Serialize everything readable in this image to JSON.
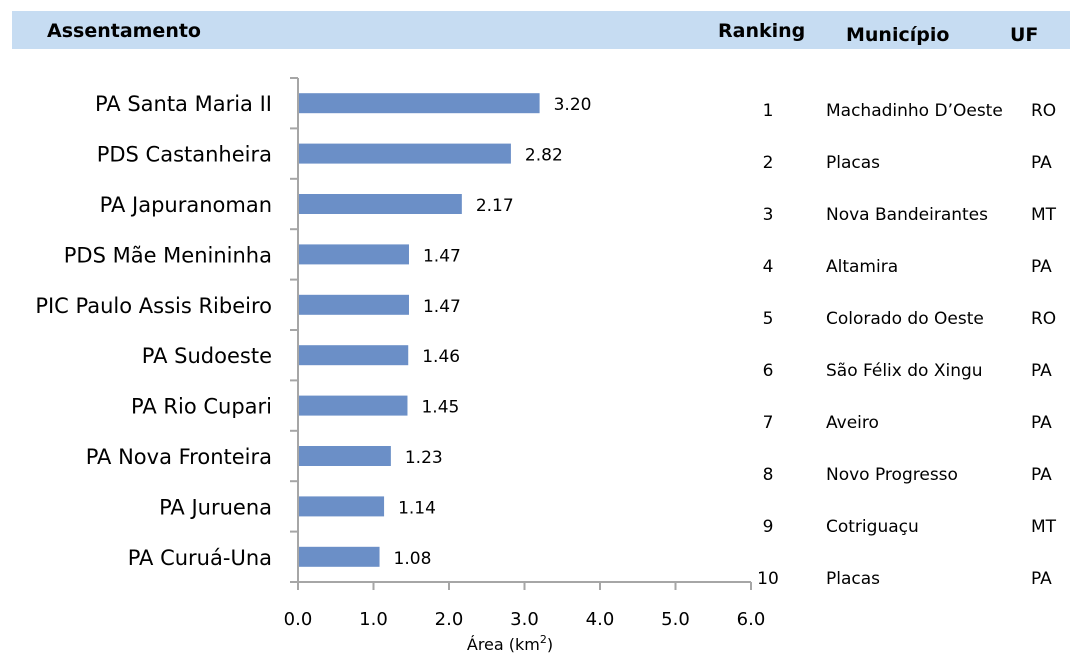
{
  "header": {
    "assentamento": "Assentamento",
    "ranking": "Ranking",
    "municipio": "Município",
    "uf": "UF"
  },
  "chart_data": {
    "type": "bar",
    "orientation": "horizontal",
    "categories": [
      "PA Santa Maria II",
      "PDS Castanheira",
      "PA Japuranoman",
      "PDS Mãe Menininha",
      "PIC Paulo Assis Ribeiro",
      "PA Sudoeste",
      "PA Rio Cupari",
      "PA Nova Fronteira",
      "PA Juruena",
      "PA Curuá-Una"
    ],
    "values": [
      3.2,
      2.82,
      2.17,
      1.47,
      1.47,
      1.46,
      1.45,
      1.23,
      1.14,
      1.08
    ],
    "value_labels": [
      "3.20",
      "2.82",
      "2.17",
      "1.47",
      "1.47",
      "1.46",
      "1.45",
      "1.23",
      "1.14",
      "1.08"
    ],
    "xticks": [
      "0.0",
      "1.0",
      "2.0",
      "3.0",
      "4.0",
      "5.0",
      "6.0"
    ],
    "xlim": [
      0,
      6
    ],
    "xlabel": "Área (km",
    "xlabel_sup": "2",
    "xlabel_end": ")",
    "bar_color": "#6b8fc7",
    "axis_color": "#a6a6a6",
    "grid": false
  },
  "table": {
    "rows": [
      {
        "rank": "1",
        "municipio": "Machadinho D’Oeste",
        "uf": "RO"
      },
      {
        "rank": "2",
        "municipio": "Placas",
        "uf": "PA"
      },
      {
        "rank": "3",
        "municipio": "Nova Bandeirantes",
        "uf": "MT"
      },
      {
        "rank": "4",
        "municipio": "Altamira",
        "uf": "PA"
      },
      {
        "rank": "5",
        "municipio": "Colorado do Oeste",
        "uf": "RO"
      },
      {
        "rank": "6",
        "municipio": "São Félix do Xingu",
        "uf": "PA"
      },
      {
        "rank": "7",
        "municipio": "Aveiro",
        "uf": "PA"
      },
      {
        "rank": "8",
        "municipio": "Novo Progresso",
        "uf": "PA"
      },
      {
        "rank": "9",
        "municipio": "Cotriguaçu",
        "uf": "MT"
      },
      {
        "rank": "10",
        "municipio": "Placas",
        "uf": "PA"
      }
    ]
  },
  "colors": {
    "header_band": "#c6dcf2"
  }
}
